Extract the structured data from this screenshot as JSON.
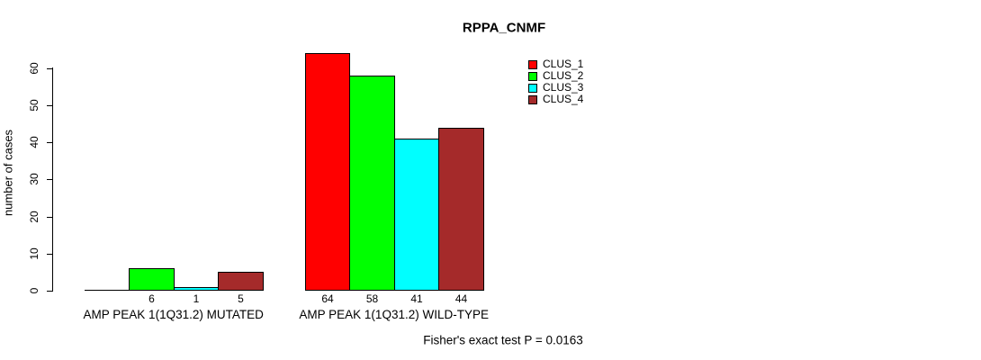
{
  "chart_data": {
    "type": "bar",
    "title": "RPPA_CNMF",
    "ylabel": "number of cases",
    "yticks": [
      0,
      10,
      20,
      30,
      40,
      50,
      60
    ],
    "ylim": [
      0,
      64
    ],
    "grid": false,
    "legend_position": "top-right",
    "categories": [
      "AMP PEAK 1(1Q31.2) MUTATED",
      "AMP PEAK 1(1Q31.2) WILD-TYPE"
    ],
    "series": [
      {
        "name": "CLUS_1",
        "color": "#FF0000",
        "values": [
          0,
          64
        ]
      },
      {
        "name": "CLUS_2",
        "color": "#00FF00",
        "values": [
          6,
          58
        ]
      },
      {
        "name": "CLUS_3",
        "color": "#00FFFF",
        "values": [
          1,
          41
        ]
      },
      {
        "name": "CLUS_4",
        "color": "#A52A2A",
        "values": [
          5,
          44
        ]
      }
    ],
    "bar_value_labels": [
      [
        "",
        "6",
        "1",
        "5"
      ],
      [
        "64",
        "58",
        "41",
        "44"
      ]
    ],
    "annotation": "Fisher's exact test P = 0.0163"
  }
}
